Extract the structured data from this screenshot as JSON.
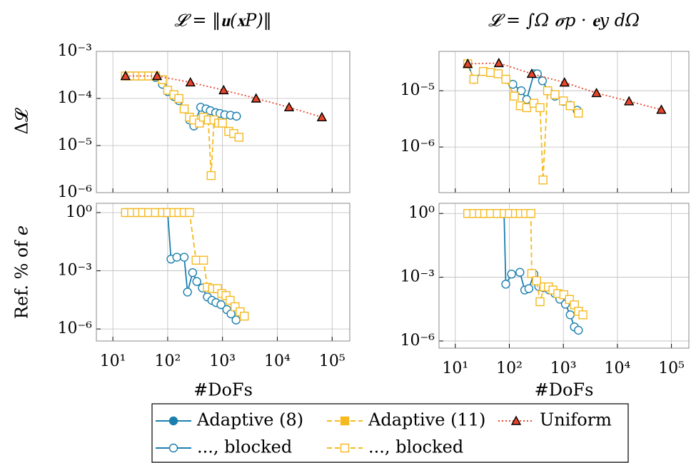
{
  "chart_data": [
    {
      "type": "line",
      "title": "𝓛 = ‖𝐮(𝐱𝑃)‖",
      "y_label": "Δ𝓛",
      "log_x": true,
      "log_y": true,
      "grid": true,
      "xlim": [
        5,
        210000
      ],
      "ylim": [
        1e-06,
        0.001
      ],
      "xticks": [
        {
          "value": 10,
          "label": "10¹"
        },
        {
          "value": 100,
          "label": "10²"
        },
        {
          "value": 1000,
          "label": "10³"
        },
        {
          "value": 10000,
          "label": "10⁴"
        },
        {
          "value": 100000,
          "label": "10⁵"
        }
      ],
      "yticks": [
        {
          "value": 1e-06,
          "label": "10⁻⁶"
        },
        {
          "value": 1e-05,
          "label": "10⁻⁵"
        },
        {
          "value": 0.0001,
          "label": "10⁻⁴"
        },
        {
          "value": 0.001,
          "label": "10⁻³"
        }
      ],
      "series": [
        {
          "color": "#1b7fae",
          "marker": "circle",
          "dash": "solid",
          "x": [
            17,
            22,
            28,
            35,
            45,
            60,
            80,
            100,
            130,
            160,
            200,
            250,
            300,
            400,
            500,
            600,
            750,
            900,
            1100,
            1400,
            1800
          ],
          "values": [
            0.0003,
            0.0003,
            0.0003,
            0.0003,
            0.0003,
            0.00028,
            0.0002,
            0.00014,
            0.00011,
            9e-05,
            6e-05,
            3.5e-05,
            2.6e-05,
            6.5e-05,
            6e-05,
            5.5e-05,
            5e-05,
            4.8e-05,
            4.5e-05,
            4.4e-05,
            4.2e-05
          ]
        },
        {
          "color": "#f6b91e",
          "marker": "square",
          "dash": "dashed",
          "x": [
            17,
            22,
            28,
            35,
            45,
            60,
            80,
            100,
            130,
            160,
            200,
            250,
            300,
            380,
            450,
            550,
            620,
            700,
            850,
            1000,
            1300,
            1600,
            2000
          ],
          "values": [
            0.0003,
            0.0003,
            0.0003,
            0.0003,
            0.0003,
            0.0003,
            0.00025,
            0.00015,
            0.00012,
            0.0001,
            6e-05,
            4e-05,
            3.5e-05,
            3e-05,
            4e-05,
            3.5e-05,
            2.3e-06,
            3.5e-05,
            3e-05,
            3e-05,
            2e-05,
            1.8e-05,
            1.5e-05
          ]
        },
        {
          "color": "#e8462a",
          "marker": "triangle",
          "dash": "dotted",
          "x": [
            17,
            64,
            260,
            1050,
            4100,
            16400,
            65000
          ],
          "values": [
            0.0003,
            0.0003,
            0.00022,
            0.00015,
            0.0001,
            6.5e-05,
            4e-05
          ]
        }
      ]
    },
    {
      "type": "line",
      "title": "𝓛 = ∫Ω 𝝈𝑝 · 𝐞𝑦 dΩ",
      "log_x": true,
      "log_y": true,
      "grid": true,
      "xlim": [
        5,
        210000
      ],
      "ylim": [
        1.55e-07,
        5e-05
      ],
      "xticks": [
        {
          "value": 10,
          "label": "10¹"
        },
        {
          "value": 100,
          "label": "10²"
        },
        {
          "value": 1000,
          "label": "10³"
        },
        {
          "value": 10000,
          "label": "10⁴"
        },
        {
          "value": 100000,
          "label": "10⁵"
        }
      ],
      "yticks": [
        {
          "value": 1e-06,
          "label": "10⁻⁶"
        },
        {
          "value": 1e-05,
          "label": "10⁻⁵"
        }
      ],
      "series": [
        {
          "color": "#1b7fae",
          "marker": "circle",
          "dash": "solid",
          "x": [
            17,
            22,
            33,
            45,
            62,
            86,
            116,
            166,
            210,
            285,
            330,
            410,
            520,
            700,
            1000,
            1340,
            1800
          ],
          "values": [
            3e-05,
            1.6e-05,
            2.2e-05,
            2.1e-05,
            2e-05,
            1.6e-05,
            1.3e-05,
            1e-05,
            7e-06,
            2e-05,
            2e-05,
            1.5e-05,
            1e-05,
            8e-06,
            6.5e-06,
            5.5e-06,
            4.5e-06
          ]
        },
        {
          "color": "#f6b91e",
          "marker": "square",
          "dash": "dashed",
          "x": [
            17,
            22,
            33,
            45,
            62,
            86,
            124,
            160,
            210,
            285,
            370,
            420,
            510,
            700,
            1000,
            1340,
            1900
          ],
          "values": [
            3e-05,
            1.6e-05,
            2.2e-05,
            2.1e-05,
            2e-05,
            1.6e-05,
            8e-06,
            5.4e-06,
            5e-06,
            6e-06,
            5e-06,
            2.6e-07,
            1e-05,
            8.5e-06,
            6.6e-06,
            5.4e-06,
            4e-06
          ]
        },
        {
          "color": "#e8462a",
          "marker": "triangle",
          "dash": "dotted",
          "x": [
            17,
            64,
            260,
            1050,
            4100,
            16400,
            65000
          ],
          "values": [
            3e-05,
            3.1e-05,
            2e-05,
            1.4e-05,
            9.1e-06,
            6.5e-06,
            4.6e-06
          ]
        }
      ]
    },
    {
      "type": "line",
      "y_label": "Ref. % of 𝑒",
      "x_label": "#DoFs",
      "log_x": true,
      "log_y": true,
      "grid": true,
      "xlim": [
        5,
        210000
      ],
      "ylim": [
        2.4e-07,
        3
      ],
      "xticks": [
        {
          "value": 10,
          "label": "10¹"
        },
        {
          "value": 100,
          "label": "10²"
        },
        {
          "value": 1000,
          "label": "10³"
        },
        {
          "value": 10000,
          "label": "10⁴"
        },
        {
          "value": 100000,
          "label": "10⁵"
        }
      ],
      "yticks": [
        {
          "value": 1e-06,
          "label": "10⁻⁶"
        },
        {
          "value": 0.001,
          "label": "10⁻³"
        },
        {
          "value": 1,
          "label": "10⁰"
        }
      ],
      "series": [
        {
          "color": "#1b7fae",
          "marker": "circle",
          "dash": "solid",
          "x": [
            17,
            22,
            28,
            35,
            45,
            60,
            80,
            100,
            115,
            147,
            200,
            230,
            285,
            340,
            430,
            530,
            640,
            760,
            940,
            1200,
            1430,
            1770
          ],
          "values": [
            1,
            1,
            1,
            1,
            1,
            1,
            1,
            1,
            0.004,
            0.005,
            0.005,
            8e-05,
            0.0008,
            0.00028,
            0.00013,
            4.5e-05,
            3e-05,
            2.3e-05,
            1.8e-05,
            1e-05,
            6e-06,
            2.9e-06
          ]
        },
        {
          "color": "#f6b91e",
          "marker": "square",
          "dash": "dashed",
          "x": [
            17,
            22,
            28,
            35,
            45,
            60,
            80,
            100,
            130,
            160,
            200,
            250,
            330,
            450,
            530,
            660,
            810,
            970,
            1160,
            1380,
            1700,
            2100,
            2500
          ],
          "values": [
            1,
            1,
            1,
            1,
            1,
            1,
            1,
            1,
            1,
            1,
            1,
            1,
            0.0035,
            0.0035,
            0.00014,
            0.00012,
            0.00012,
            6.7e-05,
            5.3e-05,
            3e-05,
            1.4e-05,
            7.7e-06,
            4.6e-06
          ]
        }
      ]
    },
    {
      "type": "line",
      "x_label": "#DoFs",
      "log_x": true,
      "log_y": true,
      "grid": true,
      "xlim": [
        5,
        210000
      ],
      "ylim": [
        4.6e-07,
        3
      ],
      "xticks": [
        {
          "value": 10,
          "label": "10¹"
        },
        {
          "value": 100,
          "label": "10²"
        },
        {
          "value": 1000,
          "label": "10³"
        },
        {
          "value": 10000,
          "label": "10⁴"
        },
        {
          "value": 100000,
          "label": "10⁵"
        }
      ],
      "yticks": [
        {
          "value": 1e-06,
          "label": "10⁻⁶"
        },
        {
          "value": 0.001,
          "label": "10⁻³"
        },
        {
          "value": 1,
          "label": "10⁰"
        }
      ],
      "series": [
        {
          "color": "#1b7fae",
          "marker": "circle",
          "dash": "solid",
          "x": [
            17,
            22,
            28,
            35,
            45,
            60,
            80,
            86,
            110,
            157,
            193,
            230,
            285,
            350,
            430,
            550,
            700,
            860,
            1090,
            1340,
            1600,
            1900
          ],
          "values": [
            1,
            1,
            1,
            1,
            1,
            1,
            1,
            0.00047,
            0.0014,
            0.0017,
            0.00025,
            0.00029,
            0.0014,
            0.00037,
            0.00032,
            0.00025,
            0.00017,
            9.3e-05,
            5.4e-05,
            1.7e-05,
            4.6e-06,
            3.2e-06
          ]
        },
        {
          "color": "#f6b91e",
          "marker": "square",
          "dash": "dashed",
          "x": [
            17,
            22,
            28,
            35,
            45,
            60,
            80,
            100,
            130,
            160,
            200,
            250,
            260,
            320,
            370,
            440,
            530,
            640,
            790,
            1020,
            1300,
            1600,
            1900,
            2300
          ],
          "values": [
            1,
            1,
            1,
            1,
            1,
            1,
            1,
            1,
            1,
            1,
            1,
            1,
            0.0015,
            0.00068,
            7e-05,
            0.00035,
            0.00035,
            0.00025,
            0.00017,
            0.00015,
            9e-05,
            5e-05,
            2.5e-05,
            1.7e-05
          ]
        }
      ]
    }
  ],
  "legend": [
    {
      "name": "Adaptive (8)",
      "color": "#1b7fae",
      "marker": "circle",
      "dash": "solid",
      "filled": true
    },
    {
      "name": "Adaptive (11)",
      "color": "#f6b91e",
      "marker": "square",
      "dash": "dashed",
      "filled": true
    },
    {
      "name": "Uniform",
      "color": "#e8462a",
      "marker": "triangle",
      "dash": "dotted",
      "filled": true
    },
    {
      "name": "..., blocked",
      "color": "#1b7fae",
      "marker": "circle",
      "dash": "solid",
      "filled": false
    },
    {
      "name": "..., blocked",
      "color": "#f6b91e",
      "marker": "square",
      "dash": "dashed",
      "filled": false
    }
  ]
}
